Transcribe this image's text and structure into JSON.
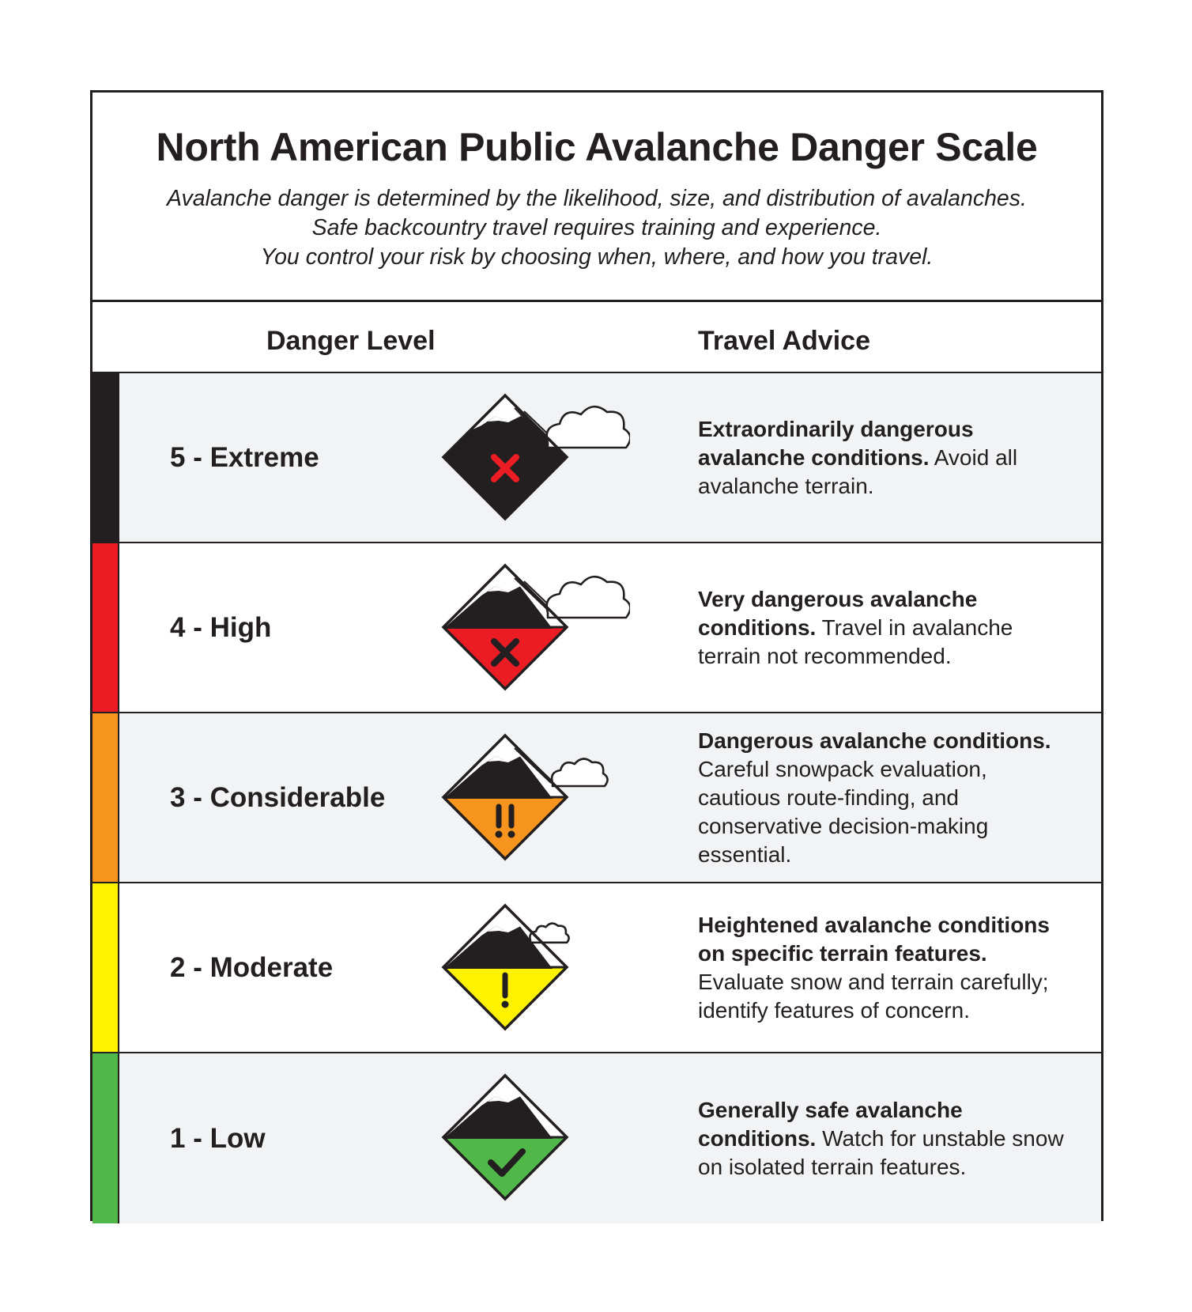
{
  "title": "North American Public Avalanche Danger Scale",
  "subtitle_lines": [
    "Avalanche danger is determined by the likelihood, size, and distribution of avalanches.",
    "Safe backcountry travel requires training and experience.",
    "You control your risk by choosing when, where, and how you travel."
  ],
  "columns": {
    "danger_level": "Danger Level",
    "travel_advice": "Travel Advice"
  },
  "levels": [
    {
      "label": "5 - Extreme",
      "color": "#231f20",
      "icon": "extreme-avalanche-icon",
      "icon_mark": "x",
      "advice_bold": "Extraordinarily dangerous avalanche conditions.",
      "advice_rest": "Avoid all avalanche terrain."
    },
    {
      "label": "4 - High",
      "color": "#ec1c24",
      "icon": "high-avalanche-icon",
      "icon_mark": "x",
      "advice_bold": "Very dangerous avalanche conditions.",
      "advice_rest": "Travel in avalanche terrain not recommended."
    },
    {
      "label": "3 - Considerable",
      "color": "#f7941d",
      "icon": "considerable-avalanche-icon",
      "icon_mark": "double-exclamation",
      "advice_bold": "Dangerous avalanche conditions.",
      "advice_rest": "Careful snowpack evaluation, cautious route-finding, and conservative decision-making essential."
    },
    {
      "label": "2 - Moderate",
      "color": "#fff200",
      "icon": "moderate-avalanche-icon",
      "icon_mark": "exclamation",
      "advice_bold": "Heightened avalanche conditions on specific terrain features.",
      "advice_rest": "Evaluate snow and terrain carefully; identify features of concern."
    },
    {
      "label": "1 - Low",
      "color": "#50b848",
      "icon": "low-avalanche-icon",
      "icon_mark": "check",
      "advice_bold": "Generally safe avalanche conditions.",
      "advice_rest": "Watch for unstable snow on isolated terrain features."
    }
  ],
  "mark_red": "#ec1c24"
}
